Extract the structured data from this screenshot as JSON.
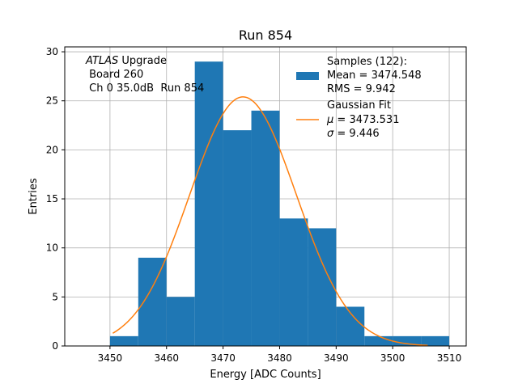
{
  "chart_data": {
    "type": "bar",
    "title": "Run 854",
    "xlabel": "Energy [ADC Counts]",
    "ylabel": "Entries",
    "xlim": [
      3442,
      3513
    ],
    "ylim": [
      0,
      30.5
    ],
    "grid": true,
    "xticks": [
      3450,
      3460,
      3470,
      3480,
      3490,
      3500,
      3510
    ],
    "yticks": [
      0,
      5,
      10,
      15,
      20,
      25,
      30
    ],
    "bin_edges": [
      3450,
      3455,
      3460,
      3465,
      3470,
      3475,
      3480,
      3485,
      3490,
      3495,
      3500,
      3505,
      3510
    ],
    "counts": [
      1,
      9,
      5,
      29,
      22,
      24,
      13,
      12,
      4,
      1,
      1,
      1
    ],
    "fit": {
      "mu": 3473.531,
      "sigma": 9.446,
      "x_start": 3450.5,
      "x_end": 3506.2,
      "peak": 25.4
    },
    "annotation": {
      "line1_italic": "ATLAS",
      "line1_rest": " Upgrade",
      "line2": " Board 260",
      "line3": " Ch 0 35.0dB  Run 854"
    },
    "legend": {
      "position": "top-right",
      "samples_title": "Samples (122):",
      "samples_mean": "Mean = 3474.548",
      "samples_rms": "RMS = 9.942",
      "fit_title": "Gaussian Fit",
      "fit_mu_symbol": "μ",
      "fit_mu_value": " = 3473.531",
      "fit_sigma_symbol": "σ",
      "fit_sigma_value": " = 9.446"
    },
    "colors": {
      "bars": "#1f77b4",
      "fit": "#ff7f0e",
      "grid": "#b0b0b0"
    }
  }
}
